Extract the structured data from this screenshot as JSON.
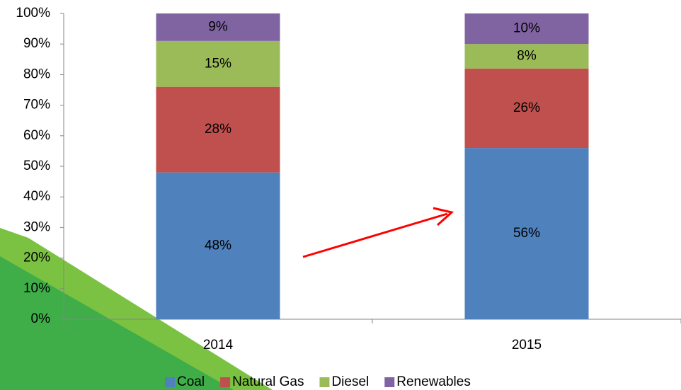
{
  "chart_data": {
    "type": "stacked_bar",
    "categories": [
      "2014",
      "2015"
    ],
    "series": [
      {
        "name": "Coal",
        "color": "#4f81bd",
        "values": [
          48,
          56
        ],
        "value_labels": [
          "48%",
          "56%"
        ]
      },
      {
        "name": "Natural Gas",
        "color": "#c0504d",
        "values": [
          28,
          26
        ],
        "value_labels": [
          "28%",
          "26%"
        ]
      },
      {
        "name": "Diesel",
        "color": "#9bbb59",
        "values": [
          15,
          8
        ],
        "value_labels": [
          "15%",
          "8%"
        ]
      },
      {
        "name": "Renewables",
        "color": "#8064a2",
        "values": [
          9,
          10
        ],
        "value_labels": [
          "9%",
          "10%"
        ]
      }
    ],
    "ylim": [
      0,
      100
    ],
    "yticks": [
      {
        "value": 0,
        "label": "0%"
      },
      {
        "value": 10,
        "label": "10%"
      },
      {
        "value": 20,
        "label": "20%"
      },
      {
        "value": 30,
        "label": "30%"
      },
      {
        "value": 40,
        "label": "40%"
      },
      {
        "value": 50,
        "label": "50%"
      },
      {
        "value": 60,
        "label": "60%"
      },
      {
        "value": 70,
        "label": "70%"
      },
      {
        "value": 80,
        "label": "80%"
      },
      {
        "value": 90,
        "label": "90%"
      },
      {
        "value": 100,
        "label": "100%"
      }
    ],
    "grid": false,
    "legend": "bottom"
  }
}
